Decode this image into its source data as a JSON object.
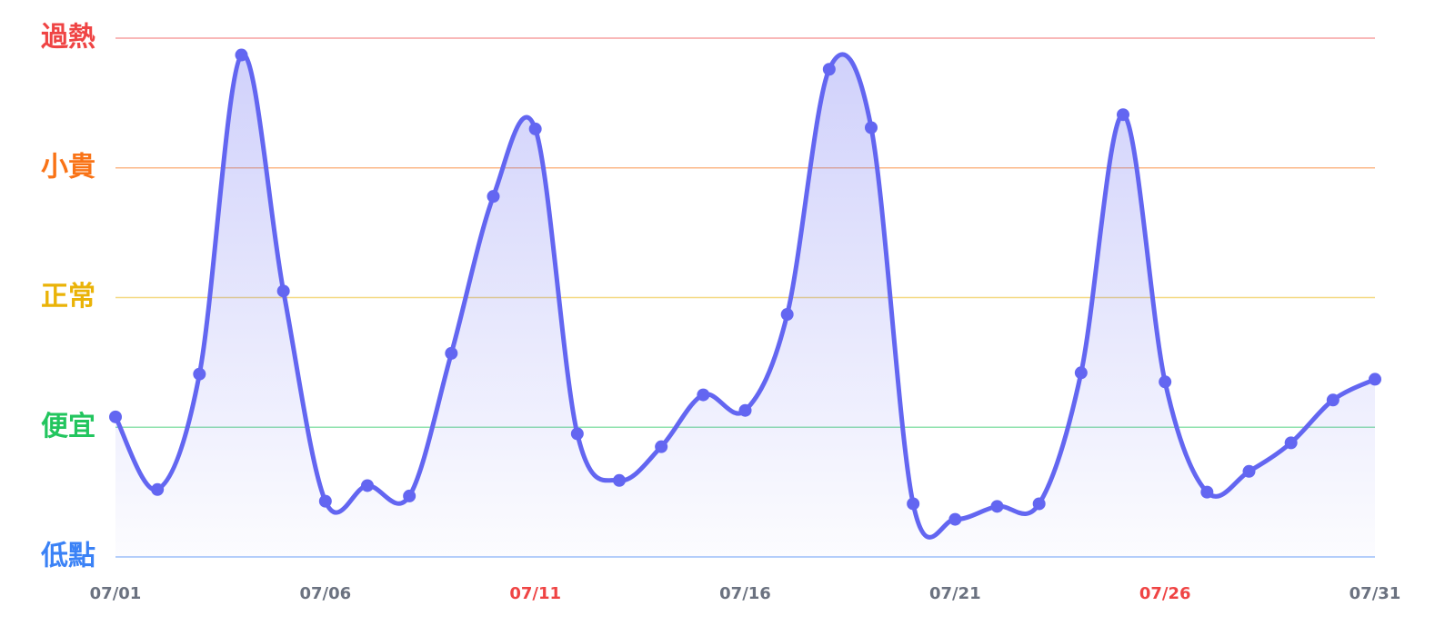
{
  "chart_data": {
    "type": "line",
    "categories": [
      "07/01",
      null,
      null,
      null,
      null,
      "07/06",
      null,
      null,
      null,
      null,
      "07/11",
      null,
      null,
      null,
      null,
      "07/16",
      null,
      null,
      null,
      null,
      "07/21",
      null,
      null,
      null,
      null,
      "07/26",
      null,
      null,
      null,
      null,
      "07/31"
    ],
    "category_colors": [
      "#6b7280",
      null,
      null,
      null,
      null,
      "#6b7280",
      null,
      null,
      null,
      null,
      "#ef4444",
      null,
      null,
      null,
      null,
      "#6b7280",
      null,
      null,
      null,
      null,
      "#6b7280",
      null,
      null,
      null,
      null,
      "#ef4444",
      null,
      null,
      null,
      null,
      "#6b7280"
    ],
    "series": [
      {
        "color": "#6366f1",
        "values": [
          1.08,
          0.52,
          1.41,
          3.87,
          2.05,
          0.43,
          0.55,
          0.47,
          1.57,
          2.78,
          3.3,
          0.95,
          0.59,
          0.85,
          1.25,
          1.13,
          1.87,
          3.76,
          3.31,
          0.41,
          0.29,
          0.39,
          0.41,
          1.42,
          3.41,
          1.35,
          0.5,
          0.66,
          0.88,
          1.21,
          1.37
        ]
      }
    ],
    "ylim": [
      0,
      4
    ],
    "yticks": [
      {
        "value": 0,
        "label": "低點"
      },
      {
        "value": 1,
        "label": "便宜"
      },
      {
        "value": 2,
        "label": "正常"
      },
      {
        "value": 3,
        "label": "小貴"
      },
      {
        "value": 4,
        "label": "過熱"
      }
    ],
    "ytick_colors": [
      "#3b82f6",
      "#22c55e",
      "#eab308",
      "#f97316",
      "#ef4444"
    ],
    "grid": true
  }
}
